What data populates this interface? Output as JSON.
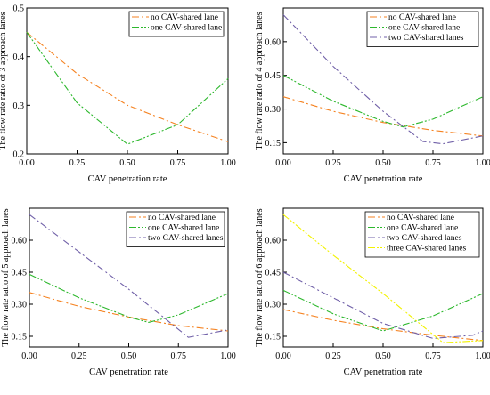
{
  "colors": {
    "no": "#F58220",
    "one": "#2DB82D",
    "two": "#7060A8",
    "three": "#F2F200"
  },
  "chart_data": [
    {
      "type": "line",
      "xlabel": "CAV penetration rate",
      "ylabel": "The flow rate ratio of 3 approach lanes",
      "xlim": [
        0,
        1
      ],
      "ylim": [
        0.2,
        0.5
      ],
      "xticks": [
        "0.00",
        "0.25",
        "0.50",
        "0.75",
        "1.00"
      ],
      "yticks": [
        "0.2",
        "0.3",
        "0.4",
        "0.5"
      ],
      "legend_position": "top-right",
      "series": [
        {
          "name": "no CAV-shared lane",
          "color_key": "no",
          "dash": "dashdot",
          "x": [
            0,
            0.25,
            0.5,
            0.75,
            1.0
          ],
          "y": [
            0.45,
            0.365,
            0.3,
            0.26,
            0.225
          ]
        },
        {
          "name": "one CAV-shared lane",
          "color_key": "one",
          "dash": "dashdotdot",
          "x": [
            0,
            0.25,
            0.5,
            0.75,
            1.0
          ],
          "y": [
            0.45,
            0.305,
            0.22,
            0.26,
            0.355
          ]
        }
      ]
    },
    {
      "type": "line",
      "xlabel": "CAV penetration rate",
      "ylabel": "The flow rate ratio of 4 approach lanes",
      "xlim": [
        0,
        1
      ],
      "ylim": [
        0.1,
        0.75
      ],
      "xticks": [
        "0.00",
        "0.25",
        "0.50",
        "0.75",
        "1.00"
      ],
      "yticks": [
        "0.15",
        "0.30",
        "0.45",
        "0.60"
      ],
      "legend_position": "top-right",
      "series": [
        {
          "name": "no CAV-shared lane",
          "color_key": "no",
          "dash": "dashdot",
          "x": [
            0,
            0.25,
            0.5,
            0.75,
            1.0
          ],
          "y": [
            0.355,
            0.29,
            0.24,
            0.205,
            0.18
          ]
        },
        {
          "name": "one CAV-shared lane",
          "color_key": "one",
          "dash": "dashdotdot",
          "x": [
            0,
            0.25,
            0.5,
            0.6,
            0.75,
            1.0
          ],
          "y": [
            0.45,
            0.335,
            0.245,
            0.22,
            0.255,
            0.355
          ]
        },
        {
          "name": "two CAV-shared lanes",
          "color_key": "two",
          "dash": "dashdot",
          "x": [
            0,
            0.25,
            0.5,
            0.7,
            0.8,
            1.0
          ],
          "y": [
            0.72,
            0.49,
            0.29,
            0.155,
            0.145,
            0.18
          ]
        }
      ]
    },
    {
      "type": "line",
      "xlabel": "CAV penetration rate",
      "ylabel": "The flow rate ratio of 5 approach lanes",
      "xlim": [
        0,
        1
      ],
      "ylim": [
        0.1,
        0.75
      ],
      "xticks": [
        "0.00",
        "0.25",
        "0.50",
        "0.75",
        "1.00"
      ],
      "yticks": [
        "0.15",
        "0.30",
        "0.45",
        "0.60"
      ],
      "legend_position": "top-right",
      "series": [
        {
          "name": "no CAV-shared lane",
          "color_key": "no",
          "dash": "dashdot",
          "x": [
            0,
            0.25,
            0.5,
            0.75,
            1.0
          ],
          "y": [
            0.355,
            0.29,
            0.24,
            0.2,
            0.175
          ]
        },
        {
          "name": "one CAV-shared lane",
          "color_key": "one",
          "dash": "dashdotdot",
          "x": [
            0,
            0.25,
            0.5,
            0.6,
            0.75,
            1.0
          ],
          "y": [
            0.44,
            0.33,
            0.24,
            0.215,
            0.25,
            0.35
          ]
        },
        {
          "name": "two CAV-shared lanes",
          "color_key": "two",
          "dash": "dashdot",
          "x": [
            0,
            0.25,
            0.5,
            0.8,
            1.0
          ],
          "y": [
            0.72,
            0.545,
            0.37,
            0.145,
            0.18
          ]
        }
      ]
    },
    {
      "type": "line",
      "xlabel": "CAV penetration rate",
      "ylabel": "The flow rate ratio of 6 approach lanes",
      "xlim": [
        0,
        1
      ],
      "ylim": [
        0.1,
        0.75
      ],
      "xticks": [
        "0.00",
        "0.25",
        "0.50",
        "0.75",
        "1.00"
      ],
      "yticks": [
        "0.15",
        "0.30",
        "0.45",
        "0.60"
      ],
      "legend_position": "top-right",
      "series": [
        {
          "name": "no CAV-shared lane",
          "color_key": "no",
          "dash": "dashdot",
          "x": [
            0,
            0.25,
            0.5,
            0.75,
            1.0
          ],
          "y": [
            0.275,
            0.225,
            0.185,
            0.155,
            0.13
          ]
        },
        {
          "name": "one CAV-shared lane",
          "color_key": "one",
          "dash": "dashdotdot",
          "x": [
            0,
            0.25,
            0.5,
            0.75,
            1.0
          ],
          "y": [
            0.365,
            0.255,
            0.175,
            0.245,
            0.35
          ]
        },
        {
          "name": "two CAV-shared lanes",
          "color_key": "two",
          "dash": "dashdot",
          "x": [
            0,
            0.25,
            0.5,
            0.75,
            0.95,
            1.0
          ],
          "y": [
            0.45,
            0.33,
            0.21,
            0.14,
            0.155,
            0.175
          ]
        },
        {
          "name": "three CAV-shared lanes",
          "color_key": "three",
          "dash": "dashdotdot",
          "x": [
            0,
            0.25,
            0.5,
            0.8,
            1.0
          ],
          "y": [
            0.72,
            0.53,
            0.35,
            0.12,
            0.13
          ]
        }
      ]
    }
  ]
}
